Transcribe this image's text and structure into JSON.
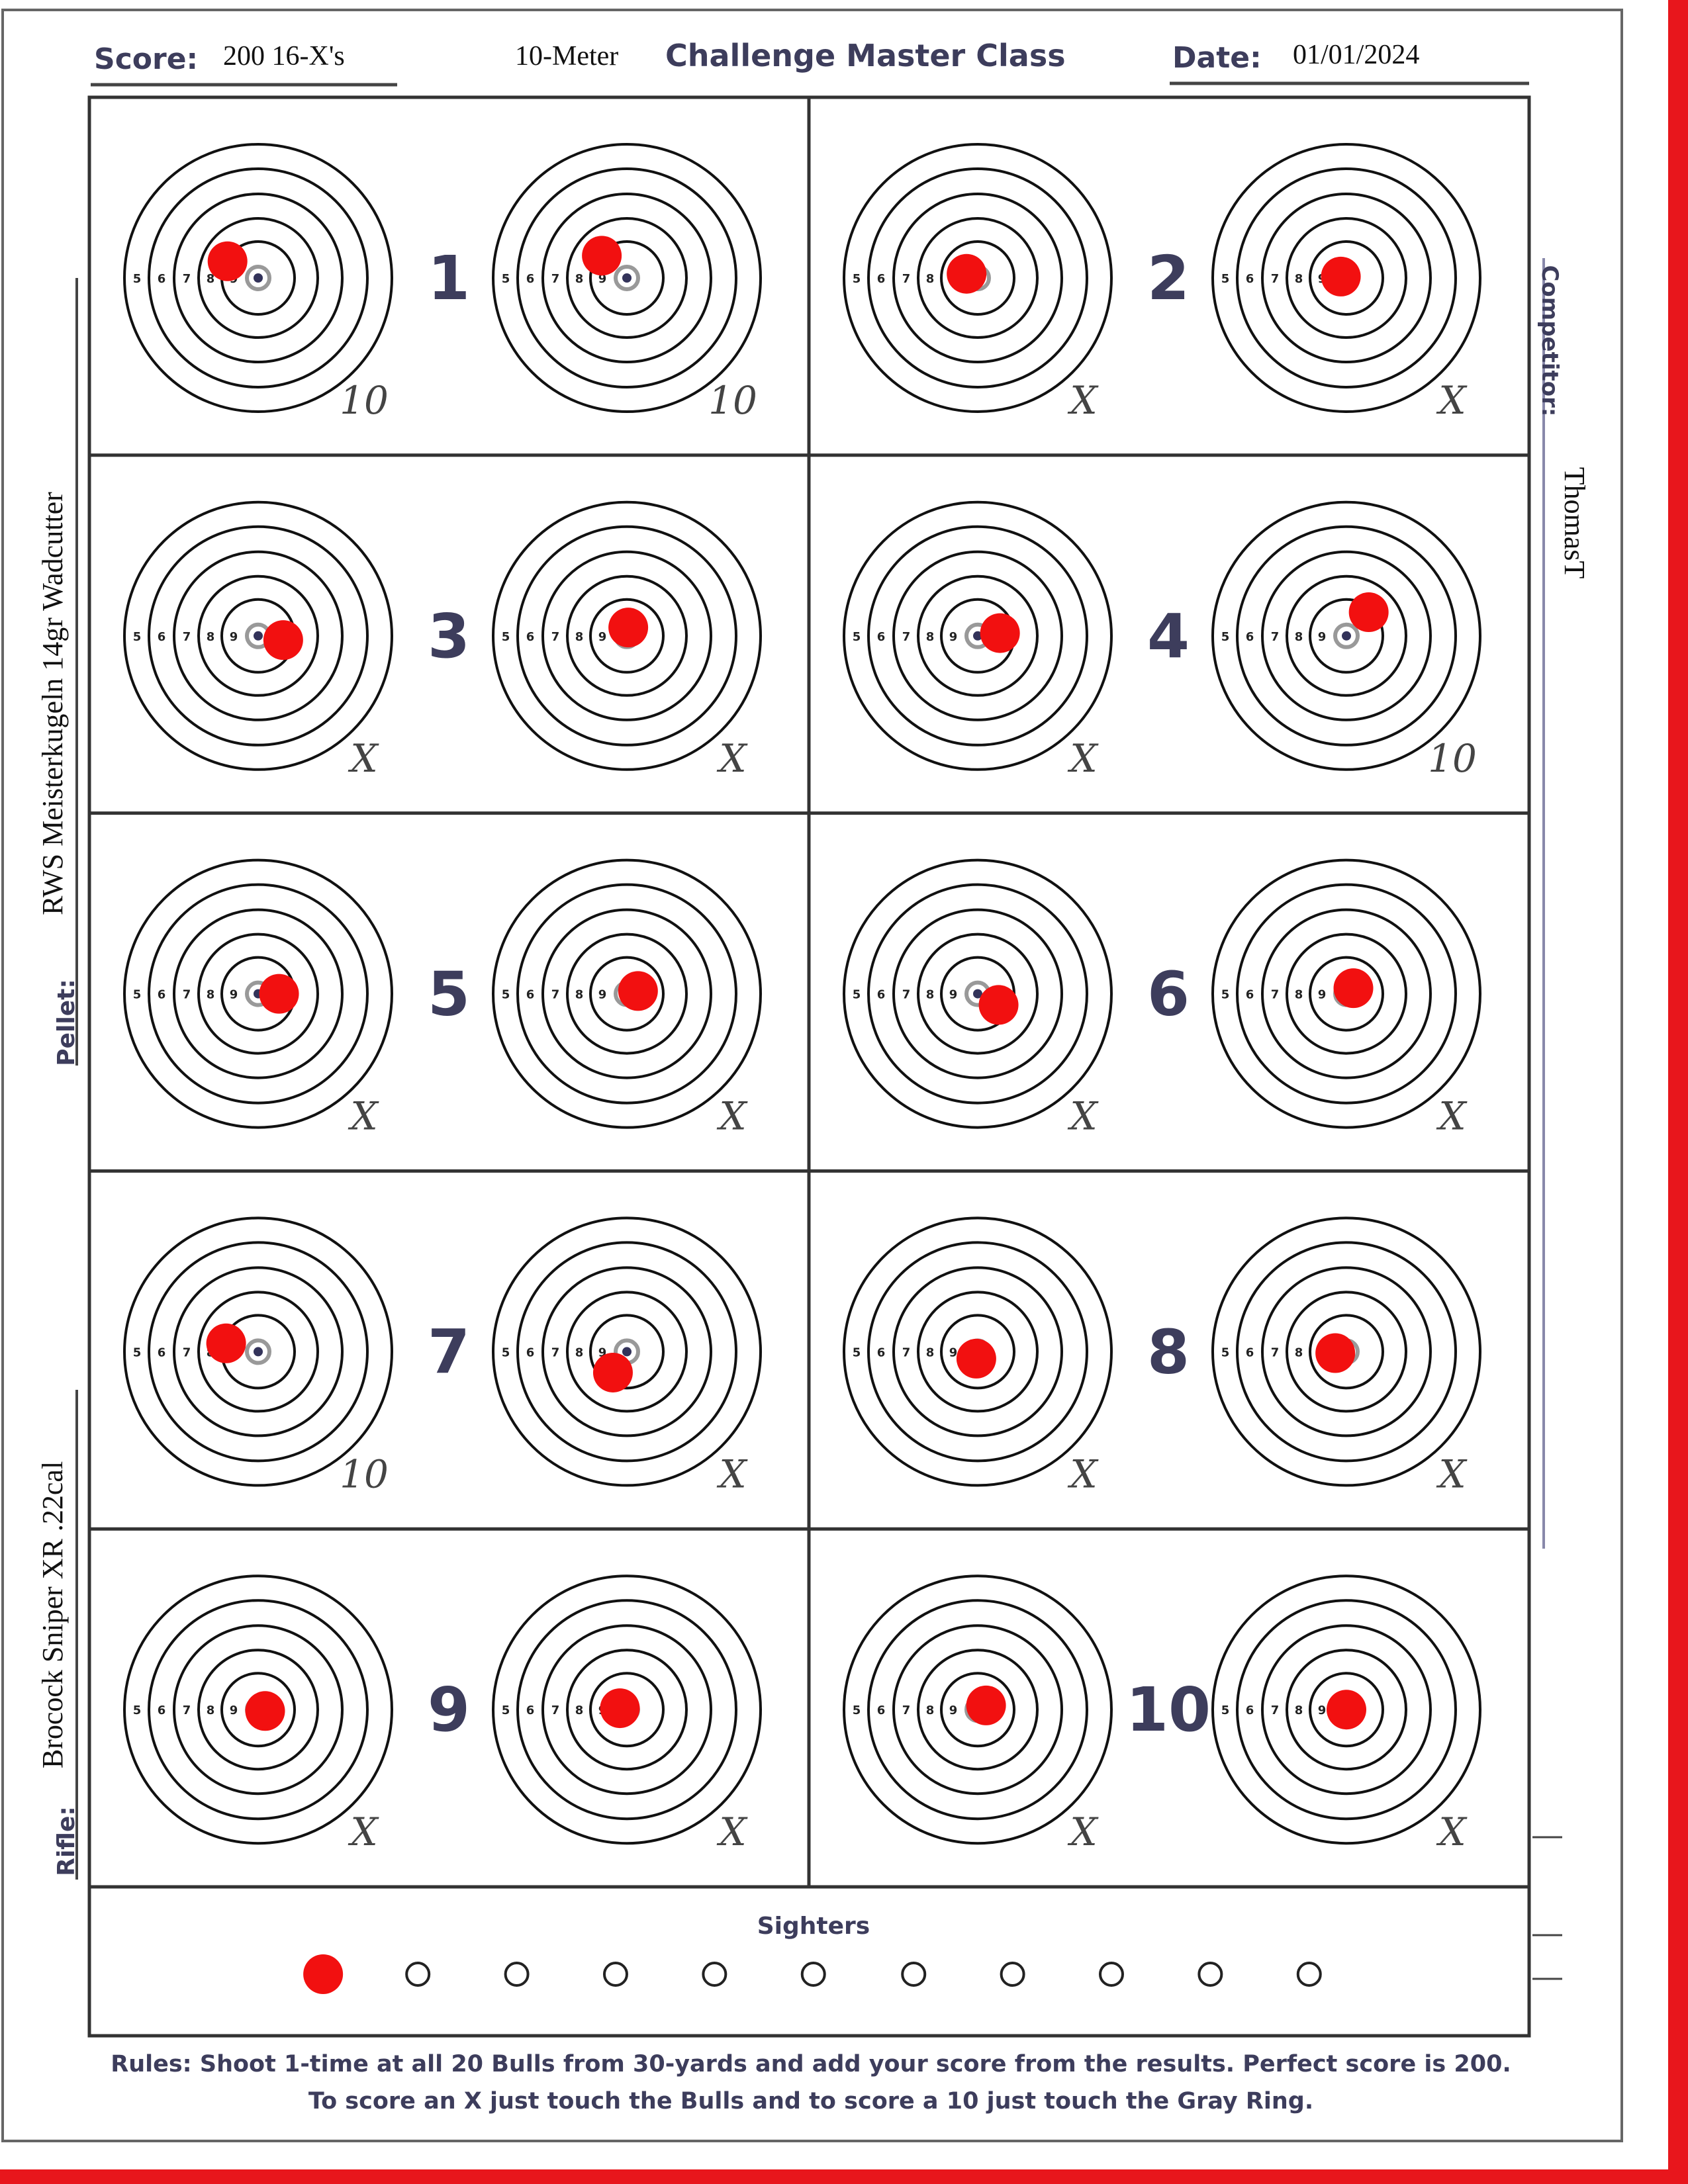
{
  "header": {
    "score_label": "Score:",
    "score": "200  16-X's",
    "event": "10-Meter",
    "title": "Challenge Master Class",
    "date_label": "Date:",
    "date": "01/01/2024"
  },
  "competitor": {
    "label": "Competitor:",
    "value": "ThomasT"
  },
  "pellet": {
    "label": "Pellet:",
    "value": "RWS Meisterkugeln 14gr Wadcutter"
  },
  "rifle": {
    "label": "Rifle:",
    "value": "Brocock Sniper XR .22cal"
  },
  "ring_labels": [
    "5",
    "6",
    "7",
    "8",
    "9"
  ],
  "targets": [
    {
      "number": 1,
      "scores": [
        "10",
        "10"
      ]
    },
    {
      "number": 2,
      "scores": [
        "X",
        "X"
      ]
    },
    {
      "number": 3,
      "scores": [
        "X",
        "X"
      ]
    },
    {
      "number": 4,
      "scores": [
        "X",
        "10"
      ]
    },
    {
      "number": 5,
      "scores": [
        "X",
        "X"
      ]
    },
    {
      "number": 6,
      "scores": [
        "X",
        "X"
      ]
    },
    {
      "number": 7,
      "scores": [
        "10",
        "X"
      ]
    },
    {
      "number": 8,
      "scores": [
        "X",
        "X"
      ]
    },
    {
      "number": 9,
      "scores": [
        "X",
        "X"
      ]
    },
    {
      "number": 10,
      "scores": [
        "X",
        "X"
      ]
    }
  ],
  "sighters": {
    "title": "Sighters"
  },
  "rules": [
    "Rules: Shoot 1-time at all 20 Bulls from 30-yards and add your score from the results. Perfect score is 200.",
    "To score an X just touch the Bulls and to score a 10 just touch the Gray Ring."
  ]
}
